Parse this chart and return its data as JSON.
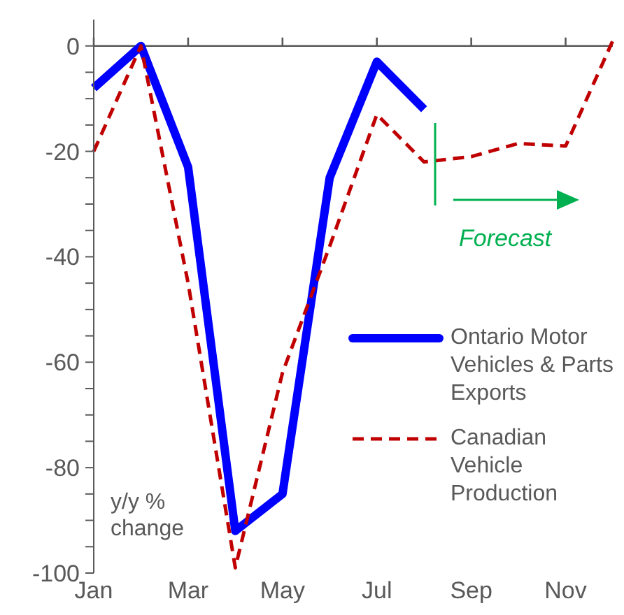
{
  "chart_data": {
    "type": "line",
    "ylabel": "y/y % change",
    "categories": [
      "Jan",
      null,
      "Mar",
      null,
      "May",
      null,
      "Jul",
      null,
      "Sep",
      null,
      "Nov",
      null
    ],
    "series": [
      {
        "name": "Ontario Motor Vehicles & Parts Exports",
        "color": "#0000ff",
        "line_style": "solid",
        "values": [
          -8,
          0,
          -23,
          -92,
          -85,
          -25,
          -3,
          -12,
          null,
          null,
          null,
          null
        ]
      },
      {
        "name": "Canadian Vehicle Production",
        "color": "#c00000",
        "line_style": "dashed",
        "values": [
          -20,
          0,
          -45,
          -99,
          -62,
          -38,
          -13,
          -22,
          -21,
          -18.5,
          -19,
          1
        ]
      }
    ],
    "ylim": [
      -100,
      5
    ],
    "yticks": [
      0,
      {
        "value": -5,
        "label": null
      },
      {
        "value": -10,
        "label": null
      },
      {
        "value": -15,
        "label": null
      },
      -20,
      {
        "value": -25,
        "label": null
      },
      {
        "value": -30,
        "label": null
      },
      {
        "value": -35,
        "label": null
      },
      -40,
      {
        "value": -45,
        "label": null
      },
      {
        "value": -50,
        "label": null
      },
      {
        "value": -55,
        "label": null
      },
      -60,
      {
        "value": -65,
        "label": null
      },
      {
        "value": -70,
        "label": null
      },
      {
        "value": -75,
        "label": null
      },
      -80,
      {
        "value": -85,
        "label": null
      },
      {
        "value": -90,
        "label": null
      },
      {
        "value": -95,
        "label": null
      },
      -100
    ],
    "annotations": [
      "Forecast"
    ],
    "ref_lines": [
      {
        "axis": "y",
        "value": 0,
        "color": "#595959"
      }
    ],
    "legend": "right",
    "grid": false,
    "marker": "none"
  }
}
